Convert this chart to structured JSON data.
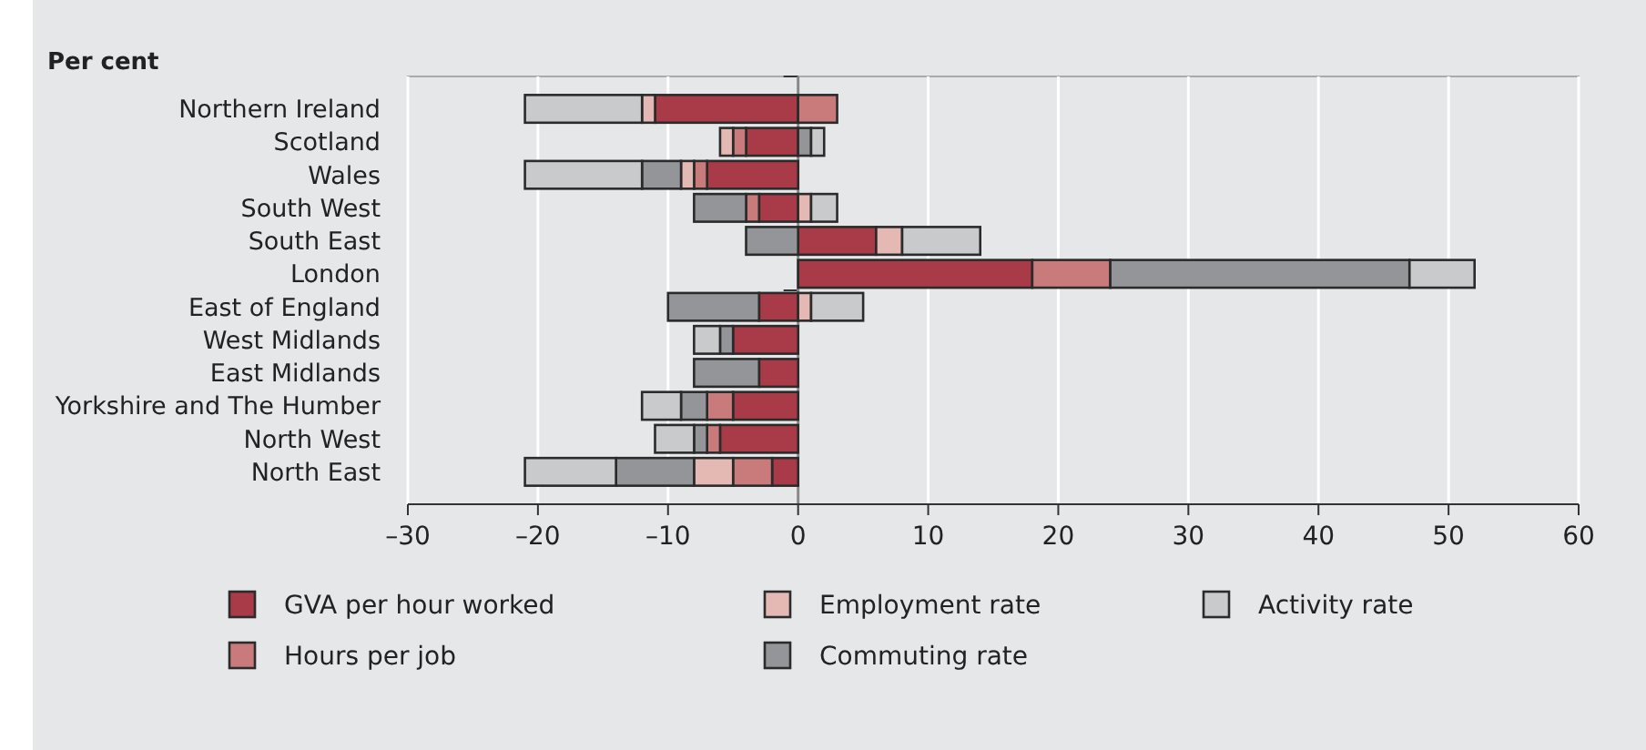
{
  "chart_data": {
    "type": "bar",
    "orientation": "horizontal",
    "stacked": true,
    "xlabel": "Per cent",
    "categories": [
      "Northern Ireland",
      "Scotland",
      "Wales",
      "South West",
      "South East",
      "London",
      "East of England",
      "West Midlands",
      "East Midlands",
      "Yorkshire and The Humber",
      "North West",
      "North East"
    ],
    "series": [
      {
        "name": "GVA per hour worked",
        "color": "#a93a47",
        "values": [
          -11,
          -4,
          -7,
          -3,
          6,
          18,
          -3,
          -5,
          -3,
          -5,
          -6,
          -2
        ]
      },
      {
        "name": "Hours per job",
        "color": "#c97a7a",
        "values": [
          3,
          -1,
          -1,
          -1,
          0,
          6,
          0,
          0,
          0,
          -2,
          -1,
          -3
        ]
      },
      {
        "name": "Employment rate",
        "color": "#e4b8b3",
        "values": [
          -1,
          -1,
          -1,
          1,
          2,
          0,
          1,
          0,
          0,
          0,
          0,
          -3
        ]
      },
      {
        "name": "Commuting rate",
        "color": "#939598",
        "values": [
          0,
          1,
          -3,
          -4,
          -4,
          23,
          -7,
          -1,
          -5,
          -2,
          -1,
          -6
        ]
      },
      {
        "name": "Activity rate",
        "color": "#c9cacb",
        "values": [
          -9,
          1,
          -9,
          2,
          6,
          5,
          4,
          -2,
          0,
          -3,
          -3,
          -7
        ]
      }
    ],
    "xlim": [
      -30,
      60
    ],
    "xticks": [
      {
        "value": -30,
        "label": "–30"
      },
      {
        "value": -20,
        "label": "–20"
      },
      {
        "value": -10,
        "label": "–10"
      },
      0,
      10,
      20,
      30,
      40,
      50,
      60
    ],
    "grid": "x",
    "legend": "bottom"
  }
}
